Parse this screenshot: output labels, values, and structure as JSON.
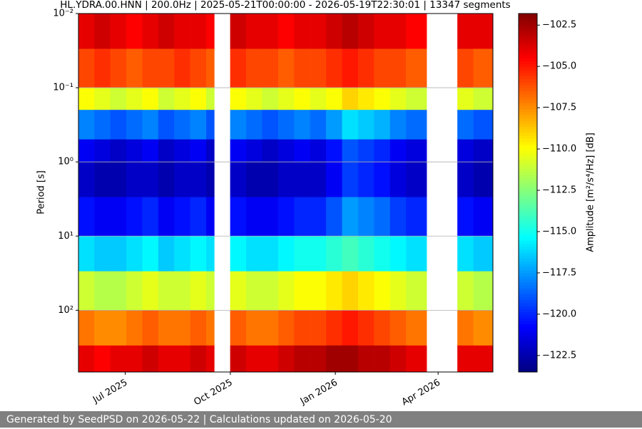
{
  "chart_data": {
    "type": "spectrogram",
    "title": "HL.YDRA.00.HNN | 200.0Hz | 2025-05-21T00:00:00 - 2026-05-19T22:30:01 | 13347 segments",
    "ylabel": "Period [s]",
    "colorbar_label": "Amplitude [m²/s⁴/Hz] [dB]",
    "colormap": "jet",
    "yscale": "log",
    "y_inverted": true,
    "grid": "y",
    "xlim": [
      "2025-05-21",
      "2026-05-19"
    ],
    "xticks": [
      {
        "value": "2025-07-01",
        "label": "Jul 2025"
      },
      {
        "value": "2025-10-01",
        "label": "Oct 2025"
      },
      {
        "value": "2026-01-01",
        "label": "Jan 2026"
      },
      {
        "value": "2026-04-01",
        "label": "Apr 2026"
      }
    ],
    "ylim": [
      0.01,
      680
    ],
    "yticks": [
      {
        "value": 0.01,
        "label": "10⁻²"
      },
      {
        "value": 0.1,
        "label": "10⁻¹"
      },
      {
        "value": 1,
        "label": "10⁰"
      },
      {
        "value": 10,
        "label": "10¹"
      },
      {
        "value": 100,
        "label": "10²"
      }
    ],
    "zlim": [
      -123.5,
      -101.8
    ],
    "zticks": [
      {
        "value": -102.5,
        "label": "−102.5"
      },
      {
        "value": -105,
        "label": "−105.0"
      },
      {
        "value": -107.5,
        "label": "−107.5"
      },
      {
        "value": -110,
        "label": "−110.0"
      },
      {
        "value": -112.5,
        "label": "−112.5"
      },
      {
        "value": -115,
        "label": "−115.0"
      },
      {
        "value": -117.5,
        "label": "−117.5"
      },
      {
        "value": -120,
        "label": "−120.0"
      },
      {
        "value": -122.5,
        "label": "−122.5"
      }
    ],
    "x_edges": [
      "2025-05-21",
      "2025-06-04",
      "2025-06-18",
      "2025-07-02",
      "2025-07-16",
      "2025-07-30",
      "2025-08-13",
      "2025-08-27",
      "2025-09-10",
      "2025-09-17",
      "2025-10-01",
      "2025-10-15",
      "2025-10-29",
      "2025-11-12",
      "2025-11-26",
      "2025-12-10",
      "2025-12-24",
      "2026-01-07",
      "2026-01-21",
      "2026-02-04",
      "2026-02-18",
      "2026-03-04",
      "2026-03-22",
      "2026-04-18",
      "2026-05-02",
      "2026-05-19"
    ],
    "y_edges": [
      0.01,
      0.03,
      0.1,
      0.2,
      0.5,
      1,
      3,
      10,
      30,
      100,
      300,
      680
    ],
    "values": [
      [
        -104,
        -103.5,
        -104,
        -104.5,
        -104,
        -103.5,
        -104,
        -104,
        -104.5,
        null,
        -103.5,
        -104,
        -104,
        -104.5,
        -104,
        -104,
        -103.5,
        -103,
        -103.5,
        -104,
        -104,
        -104.5,
        null,
        -104,
        -104
      ],
      [
        -106,
        -105.5,
        -106,
        -106.5,
        -106,
        -106,
        -105.5,
        -106,
        -106.5,
        null,
        -105.5,
        -106,
        -106,
        -106.5,
        -106,
        -106,
        -105.5,
        -105,
        -105.5,
        -106,
        -106,
        -106.5,
        null,
        -106,
        -106.5
      ],
      [
        -110,
        -110.5,
        -111,
        -110.5,
        -110,
        -111,
        -110.5,
        -110,
        -111,
        null,
        -110,
        -110.5,
        -111,
        -110.5,
        -110,
        -110.5,
        -110,
        -109,
        -109.5,
        -110,
        -110.5,
        -111,
        null,
        -110.5,
        -111
      ],
      [
        -118,
        -118.5,
        -119,
        -118.5,
        -118,
        -119,
        -118.5,
        -118,
        -119,
        null,
        -118,
        -118.5,
        -119,
        -118.5,
        -118,
        -118.5,
        -117.5,
        -116,
        -116.5,
        -117,
        -118,
        -118.5,
        null,
        -118.5,
        -119
      ],
      [
        -121,
        -121.5,
        -122,
        -121.5,
        -121,
        -122,
        -121.5,
        -121,
        -122,
        null,
        -121,
        -121.5,
        -122,
        -121.5,
        -121,
        -121.5,
        -120.5,
        -119,
        -119.5,
        -120,
        -121,
        -121.5,
        null,
        -121.5,
        -122
      ],
      [
        -122,
        -122.5,
        -122.5,
        -122,
        -122,
        -122.5,
        -122,
        -122,
        -122.5,
        null,
        -122,
        -122.5,
        -122.5,
        -122,
        -122,
        -122,
        -121,
        -119.5,
        -120,
        -120.5,
        -121.5,
        -122,
        null,
        -122,
        -122.5
      ],
      [
        -120.5,
        -121,
        -121,
        -120.5,
        -120,
        -121,
        -120.5,
        -120,
        -121,
        null,
        -120.5,
        -121,
        -121,
        -120.5,
        -120,
        -120,
        -119,
        -117.5,
        -118,
        -118.5,
        -119.5,
        -120,
        null,
        -120.5,
        -121
      ],
      [
        -116,
        -116.5,
        -116.5,
        -116,
        -115.5,
        -116.5,
        -116,
        -115.5,
        -116,
        null,
        -115.5,
        -116,
        -116,
        -115.5,
        -115,
        -115,
        -114.5,
        -114,
        -114.5,
        -115,
        -115.5,
        -116,
        null,
        -116,
        -116.5
      ],
      [
        -111,
        -111.5,
        -111.5,
        -111,
        -110.5,
        -111,
        -111,
        -110.5,
        -111,
        null,
        -110.5,
        -111,
        -111,
        -110.5,
        -110,
        -110,
        -109.5,
        -109,
        -109.5,
        -110,
        -110.5,
        -111,
        null,
        -111,
        -111.5
      ],
      [
        -107,
        -107.5,
        -107.5,
        -107,
        -106.5,
        -107,
        -107,
        -106.5,
        -107,
        null,
        -106.5,
        -107,
        -107,
        -106.5,
        -106,
        -106,
        -105.5,
        -105,
        -105.5,
        -106,
        -106.5,
        -107,
        null,
        -107,
        -107.5
      ],
      [
        -104,
        -104.5,
        -104,
        -104,
        -103.5,
        -104,
        -104,
        -103.5,
        -104,
        null,
        -103.5,
        -104,
        -104,
        -103.5,
        -103,
        -103,
        -102.5,
        -102.5,
        -103,
        -103,
        -103.5,
        -104,
        null,
        -104,
        -104
      ]
    ]
  },
  "footer": "Generated by SeedPSD on 2026-05-22 | Calculations updated on 2026-05-20"
}
